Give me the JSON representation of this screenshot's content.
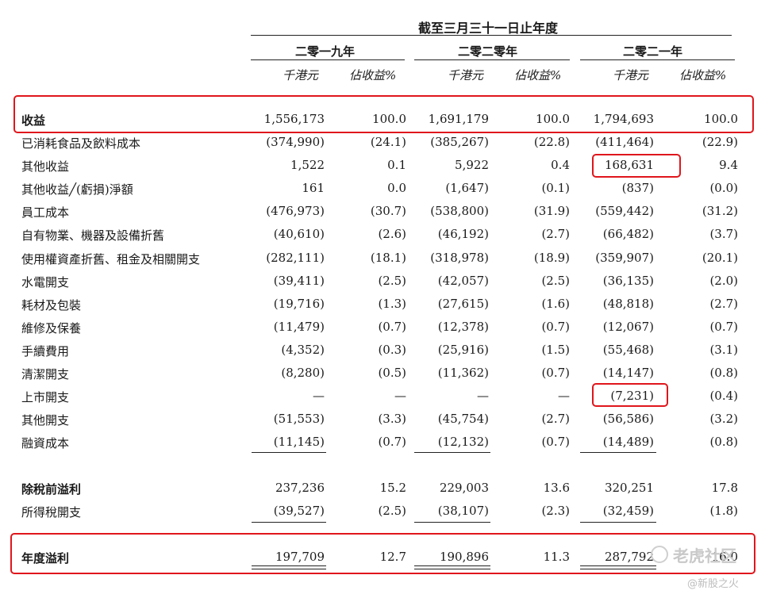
{
  "header": {
    "title": "截至三月三十一日止年度",
    "years": [
      "二零一九年",
      "二零二零年",
      "二零二一年"
    ],
    "unit_amount": "千港元",
    "unit_pct": "佔收益%"
  },
  "rows": [
    {
      "label": "收益",
      "v": [
        "1,556,173",
        "100.0",
        "1,691,179",
        "100.0",
        "1,794,693",
        "100.0"
      ]
    },
    {
      "label": "已消耗食品及飲料成本",
      "v": [
        "(374,990)",
        "(24.1)",
        "(385,267)",
        "(22.8)",
        "(411,464)",
        "(22.9)"
      ]
    },
    {
      "label": "其他收益",
      "v": [
        "1,522",
        "0.1",
        "5,922",
        "0.4",
        "168,631",
        "9.4"
      ]
    },
    {
      "label": "其他收益╱(虧損)淨額",
      "v": [
        "161",
        "0.0",
        "(1,647)",
        "(0.1)",
        "(837)",
        "(0.0)"
      ]
    },
    {
      "label": "員工成本",
      "v": [
        "(476,973)",
        "(30.7)",
        "(538,800)",
        "(31.9)",
        "(559,442)",
        "(31.2)"
      ]
    },
    {
      "label": "自有物業、機器及設備折舊",
      "v": [
        "(40,610)",
        "(2.6)",
        "(46,192)",
        "(2.7)",
        "(66,482)",
        "(3.7)"
      ]
    },
    {
      "label": "使用權資產折舊、租金及相關開支",
      "v": [
        "(282,111)",
        "(18.1)",
        "(318,978)",
        "(18.9)",
        "(359,907)",
        "(20.1)"
      ]
    },
    {
      "label": "水電開支",
      "v": [
        "(39,411)",
        "(2.5)",
        "(42,057)",
        "(2.5)",
        "(36,135)",
        "(2.0)"
      ]
    },
    {
      "label": "耗材及包裝",
      "v": [
        "(19,716)",
        "(1.3)",
        "(27,615)",
        "(1.6)",
        "(48,818)",
        "(2.7)"
      ]
    },
    {
      "label": "維修及保養",
      "v": [
        "(11,479)",
        "(0.7)",
        "(12,378)",
        "(0.7)",
        "(12,067)",
        "(0.7)"
      ]
    },
    {
      "label": "手續費用",
      "v": [
        "(4,352)",
        "(0.3)",
        "(25,916)",
        "(1.5)",
        "(55,468)",
        "(3.1)"
      ]
    },
    {
      "label": "清潔開支",
      "v": [
        "(8,280)",
        "(0.5)",
        "(11,362)",
        "(0.7)",
        "(14,147)",
        "(0.8)"
      ]
    },
    {
      "label": "上市開支",
      "v": [
        "—",
        "—",
        "—",
        "—",
        "(7,231)",
        "(0.4)"
      ]
    },
    {
      "label": "其他開支",
      "v": [
        "(51,553)",
        "(3.3)",
        "(45,754)",
        "(2.7)",
        "(56,586)",
        "(3.2)"
      ]
    },
    {
      "label": "融資成本",
      "v": [
        "(11,145)",
        "(0.7)",
        "(12,132)",
        "(0.7)",
        "(14,489)",
        "(0.8)"
      ]
    },
    {
      "label": "除稅前溢利",
      "v": [
        "237,236",
        "15.2",
        "229,003",
        "13.6",
        "320,251",
        "17.8"
      ]
    },
    {
      "label": "所得稅開支",
      "v": [
        "(39,527)",
        "(2.5)",
        "(38,107)",
        "(2.3)",
        "(32,459)",
        "(1.8)"
      ]
    },
    {
      "label": "年度溢利",
      "v": [
        "197,709",
        "12.7",
        "190,896",
        "11.3",
        "287,792",
        "16.0"
      ]
    }
  ],
  "watermark": {
    "brand": "老虎社区",
    "handle": "@新股之火"
  }
}
